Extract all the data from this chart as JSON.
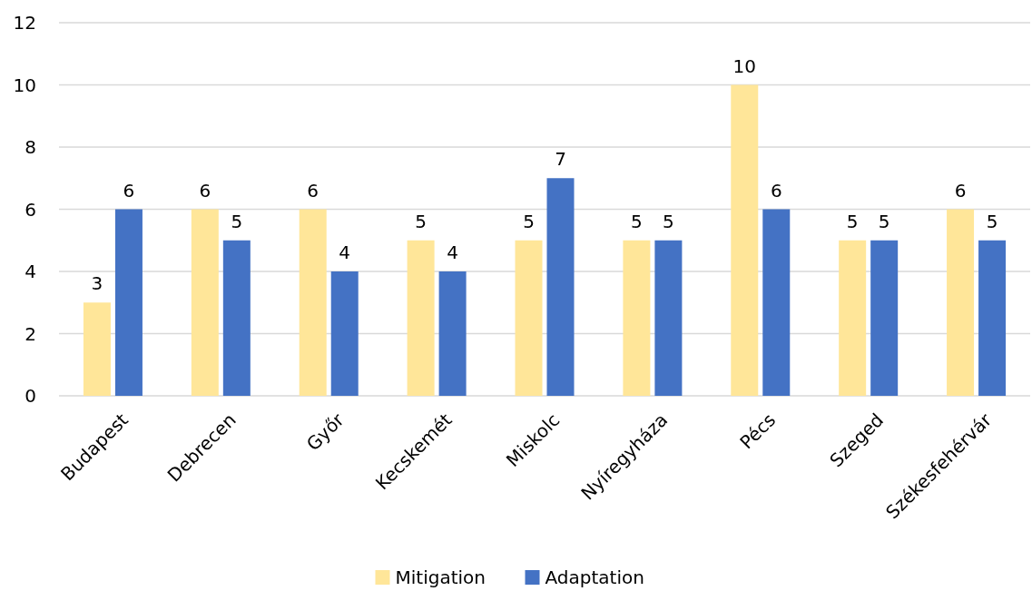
{
  "chart_data": {
    "type": "bar",
    "categories": [
      "Budapest",
      "Debrecen",
      "Győr",
      "Kecskemét",
      "Miskolc",
      "Nyíregyháza",
      "Pécs",
      "Szeged",
      "Székesfehérvár"
    ],
    "series": [
      {
        "name": "Mitigation",
        "color": "#ffe699",
        "values": [
          3,
          6,
          6,
          5,
          5,
          5,
          10,
          5,
          6
        ]
      },
      {
        "name": "Adaptation",
        "color": "#4472c4",
        "values": [
          6,
          5,
          4,
          4,
          7,
          5,
          6,
          5,
          5
        ]
      }
    ],
    "ylim": [
      0,
      12
    ],
    "yticks": [
      0,
      2,
      4,
      6,
      8,
      10,
      12
    ],
    "grid": "y",
    "legend": "bottom",
    "data_labels": true
  }
}
